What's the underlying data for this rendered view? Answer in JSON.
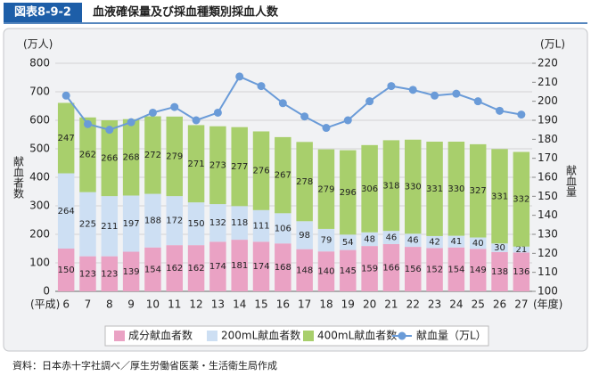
{
  "header": {
    "figure_no": "図表8-9-2",
    "title": "血液確保量及び採血種類別採血人数"
  },
  "chart_data": {
    "type": "stacked_bar_line",
    "y_unit": "(万人)",
    "y2_unit": "(万L)",
    "y_title": "献血者数",
    "y2_title": "献血量",
    "x_prefix": "(平成)",
    "x_suffix": "(年度)",
    "categories": [
      "6",
      "7",
      "8",
      "9",
      "10",
      "11",
      "12",
      "13",
      "14",
      "15",
      "16",
      "17",
      "18",
      "19",
      "20",
      "21",
      "22",
      "23",
      "24",
      "25",
      "26",
      "27"
    ],
    "series": [
      {
        "name": "成分献血者数",
        "color": "#eaa2c4",
        "values": [
          150,
          123,
          123,
          139,
          154,
          162,
          162,
          174,
          181,
          174,
          168,
          148,
          140,
          145,
          159,
          166,
          156,
          152,
          154,
          149,
          138,
          136
        ]
      },
      {
        "name": "200mL献血者数",
        "color": "#cddff3",
        "values": [
          264,
          225,
          211,
          197,
          188,
          172,
          150,
          132,
          118,
          111,
          106,
          98,
          79,
          54,
          48,
          46,
          46,
          42,
          41,
          40,
          30,
          21
        ]
      },
      {
        "name": "400mL献血者数",
        "color": "#a8cf6c",
        "values": [
          247,
          262,
          266,
          268,
          272,
          279,
          271,
          273,
          277,
          276,
          267,
          278,
          279,
          296,
          306,
          318,
          330,
          331,
          330,
          327,
          331,
          332
        ]
      },
      {
        "name": "献血量（万L）",
        "color": "#6a9bd8",
        "axis": "y2",
        "values": [
          203,
          188,
          185,
          189,
          194,
          197,
          190,
          194,
          213,
          208,
          199,
          192,
          186,
          190,
          200,
          208,
          206,
          203,
          204,
          200,
          195,
          193
        ]
      }
    ],
    "ylim": [
      0,
      800
    ],
    "yticks": [
      0,
      100,
      200,
      300,
      400,
      500,
      600,
      700,
      800
    ],
    "y2lim": [
      100,
      220
    ],
    "y2ticks": [
      100,
      110,
      120,
      130,
      140,
      150,
      160,
      170,
      180,
      190,
      200,
      210,
      220
    ]
  },
  "source": "資料：日本赤十字社調べ／厚生労働省医薬・生活衛生局作成"
}
